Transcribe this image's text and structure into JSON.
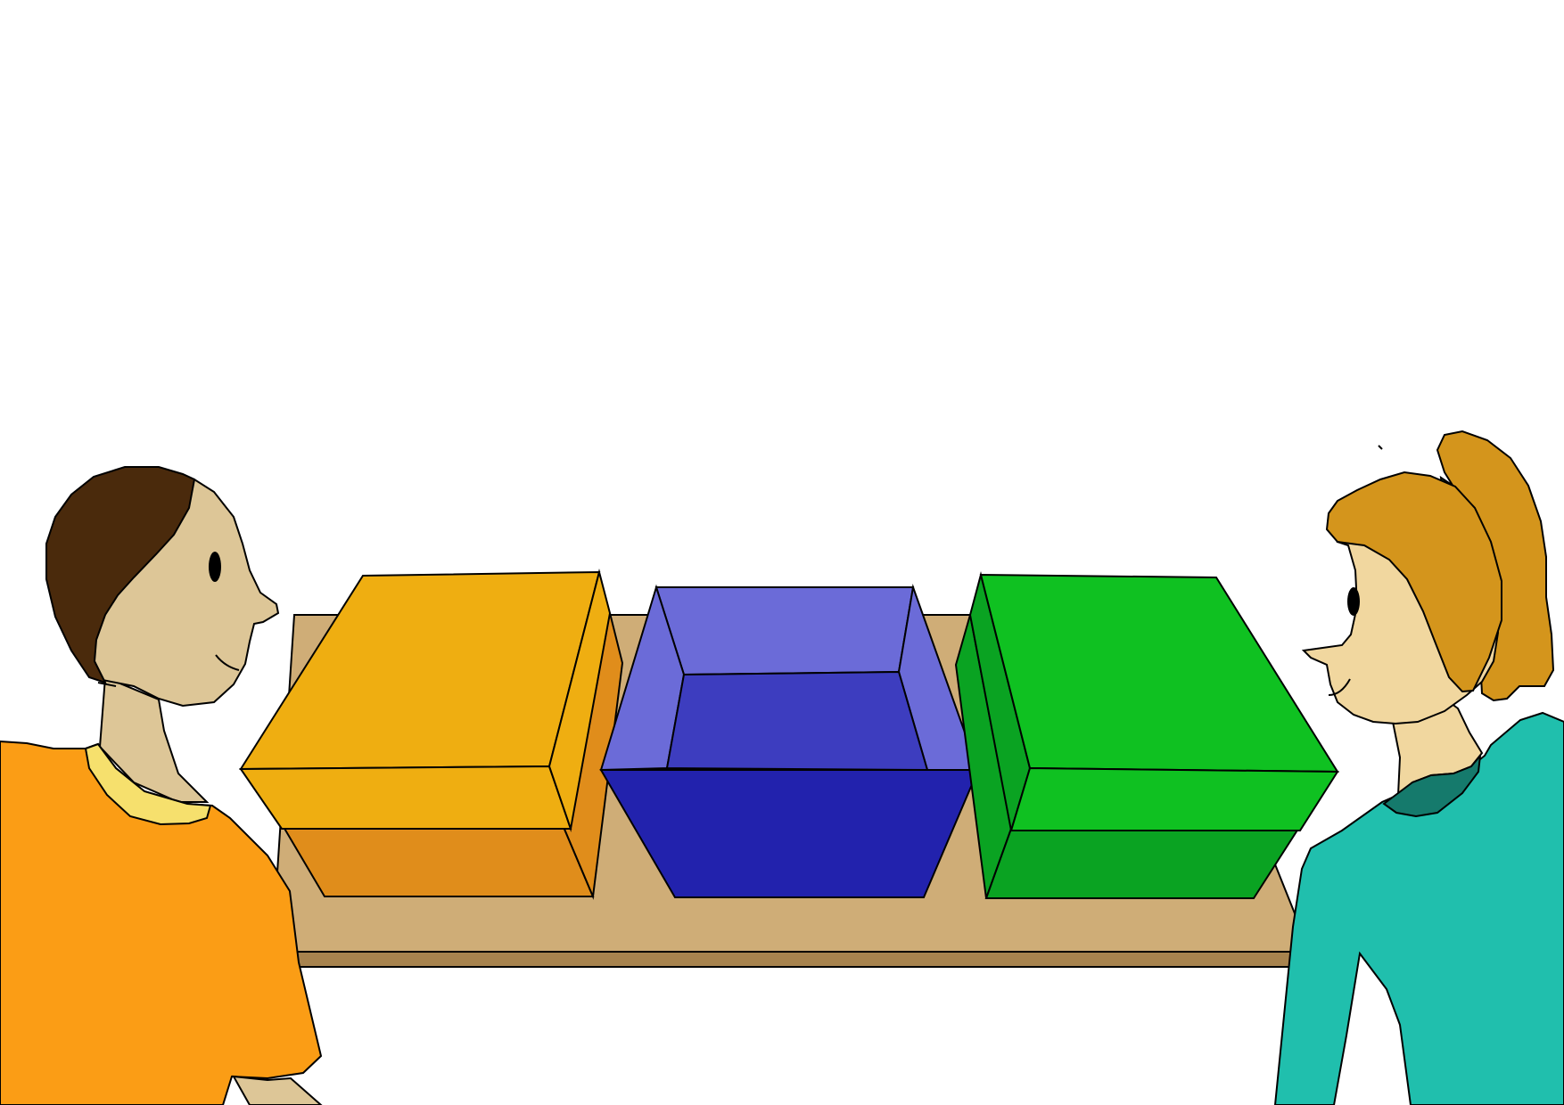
{
  "scene": {
    "background_color": "#ffffff",
    "outline_color": "#000000",
    "table": {
      "top_color": "#cfad77",
      "edge_color": "#a7834e"
    },
    "boxes": [
      {
        "name": "orange-box",
        "state": "closed",
        "lid_color": "#efae11",
        "body_color": "#e08d1b",
        "lid_front_color": "#efae11",
        "lid_side_color": "#efae11"
      },
      {
        "name": "blue-box",
        "state": "open",
        "rim_color": "#6b6bd8",
        "inner_color": "#3d3dbf",
        "body_color": "#2222ad"
      },
      {
        "name": "green-box",
        "state": "closed",
        "lid_color": "#0fc121",
        "body_color": "#0aa322",
        "lid_front_color": "#0fc121",
        "lid_side_color": "#0aa322"
      }
    ],
    "people": [
      {
        "name": "boy",
        "position": "left",
        "shirt_color": "#fb9d15",
        "skin_color": "#ddc697",
        "hair_color": "#4a2a0c",
        "collar_color": "#f6e06d"
      },
      {
        "name": "girl",
        "position": "right",
        "shirt_color": "#20bfad",
        "skin_color": "#f1d79f",
        "hair_color": "#d4951c",
        "collar_color": "#157a6c",
        "hair_tie_color": "#20bfad"
      }
    ]
  }
}
